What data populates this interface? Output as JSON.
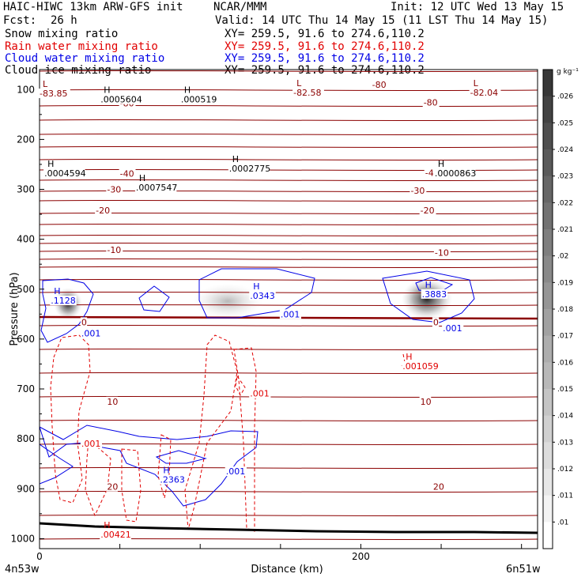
{
  "header": {
    "model": "HAIC-HIWC 13km ARW-GFS init",
    "org": "NCAR/MMM",
    "init": "Init: 12 UTC Wed 13 May 15",
    "fcst_label": "Fcst:",
    "fcst_value": "26 h",
    "valid": "Valid: 14 UTC Thu 14 May 15 (11 LST Thu 14 May 15)"
  },
  "fields": [
    {
      "name": "Snow mixing ratio",
      "xy": "XY= 259.5, 91.6 to 274.6,110.2",
      "color": "#000000"
    },
    {
      "name": "Rain water mixing ratio",
      "xy": "XY= 259.5, 91.6 to 274.6,110.2",
      "color": "#e10000"
    },
    {
      "name": "Cloud water mixing ratio",
      "xy": "XY= 259.5, 91.6 to 274.6,110.2",
      "color": "#0000e6"
    },
    {
      "name": "Cloud ice mixing ratio",
      "xy": "XY= 259.5, 91.6 to 274.6,110.2",
      "color": "#000000"
    }
  ],
  "chart_data": {
    "type": "contour",
    "xlabel": "Distance (km)",
    "ylabel": "Pressure (hPa)",
    "xlim": [
      0,
      310
    ],
    "ylim": [
      1020,
      60
    ],
    "x_ticks": [
      0,
      200
    ],
    "y_ticks": [
      100,
      200,
      300,
      400,
      500,
      600,
      700,
      800,
      900,
      1000
    ],
    "x_endpoints": {
      "left": "4n53w",
      "right": "6n51w"
    },
    "colorbar": {
      "unit": "g kg⁻¹",
      "ticks": [
        ".026",
        ".025",
        ".024",
        ".023",
        ".022",
        ".021",
        ".02",
        ".019",
        ".018",
        ".017",
        ".016",
        ".015",
        ".014",
        ".013",
        ".012",
        ".011",
        ".01"
      ]
    },
    "temperature_labels": [
      {
        "x": 50,
        "p": 127,
        "text": "-80"
      },
      {
        "x": 207,
        "p": 90,
        "text": "-80"
      },
      {
        "x": 239,
        "p": 126,
        "text": "-80"
      },
      {
        "x": 50,
        "p": 268,
        "text": "-40"
      },
      {
        "x": 240,
        "p": 267,
        "text": "-40"
      },
      {
        "x": 42,
        "p": 300,
        "text": "-30"
      },
      {
        "x": 231,
        "p": 302,
        "text": "-30"
      },
      {
        "x": 35,
        "p": 342,
        "text": "-20"
      },
      {
        "x": 237,
        "p": 342,
        "text": "-20"
      },
      {
        "x": 42,
        "p": 421,
        "text": "-10"
      },
      {
        "x": 246,
        "p": 427,
        "text": "-10"
      },
      {
        "x": 26,
        "p": 566,
        "text": "0"
      },
      {
        "x": 245,
        "p": 566,
        "text": "0"
      },
      {
        "x": 42,
        "p": 725,
        "text": "10"
      },
      {
        "x": 237,
        "p": 725,
        "text": "10"
      },
      {
        "x": 42,
        "p": 896,
        "text": "20"
      },
      {
        "x": 245,
        "p": 896,
        "text": "20"
      }
    ],
    "extrema": [
      {
        "x": 0,
        "p": 95,
        "kind": "L",
        "value": "-83.85",
        "color": "#8b0000"
      },
      {
        "x": 158,
        "p": 93,
        "kind": "L",
        "value": "-82.58",
        "color": "#8b0000"
      },
      {
        "x": 268,
        "p": 93,
        "kind": "L",
        "value": "-82.04",
        "color": "#8b0000"
      },
      {
        "x": 38,
        "p": 107,
        "kind": "H",
        "value": ".0005604",
        "color": "#000000"
      },
      {
        "x": 88,
        "p": 107,
        "kind": "H",
        "value": ".000519",
        "color": "#000000"
      },
      {
        "x": 3,
        "p": 255,
        "kind": "H",
        "value": ".0004594",
        "color": "#000000"
      },
      {
        "x": 60,
        "p": 283,
        "kind": "H",
        "value": ".0007547",
        "color": "#000000"
      },
      {
        "x": 118,
        "p": 245,
        "kind": "H",
        "value": ".0002775",
        "color": "#000000"
      },
      {
        "x": 246,
        "p": 255,
        "kind": "H",
        "value": ".0000863",
        "color": "#000000"
      },
      {
        "x": 7,
        "p": 510,
        "kind": "H",
        "value": ".1128",
        "color": "#0000e6"
      },
      {
        "x": 131,
        "p": 500,
        "kind": "H",
        "value": ".0343",
        "color": "#0000e6"
      },
      {
        "x": 238,
        "p": 497,
        "kind": "H",
        "value": ".3883",
        "color": "#0000e6"
      },
      {
        "x": 75,
        "p": 869,
        "kind": "H",
        "value": ".2363",
        "color": "#0000e6"
      },
      {
        "x": 226,
        "p": 641,
        "kind": "H",
        "value": ".001059",
        "color": "#e10000"
      },
      {
        "x": 38,
        "p": 979,
        "kind": "H",
        "value": ".00421",
        "color": "#e10000"
      }
    ],
    "contour_labels": [
      {
        "x": 26,
        "p": 588,
        "text": ".001",
        "color": "#0000e6"
      },
      {
        "x": 150,
        "p": 550,
        "text": ".001",
        "color": "#0000e6"
      },
      {
        "x": 251,
        "p": 578,
        "text": ".001",
        "color": "#0000e6"
      },
      {
        "x": 116,
        "p": 865,
        "text": ".001",
        "color": "#0000e6"
      },
      {
        "x": 26,
        "p": 809,
        "text": ".001",
        "color": "#e10000"
      },
      {
        "x": 131,
        "p": 709,
        "text": ".001",
        "color": "#e10000"
      }
    ]
  }
}
